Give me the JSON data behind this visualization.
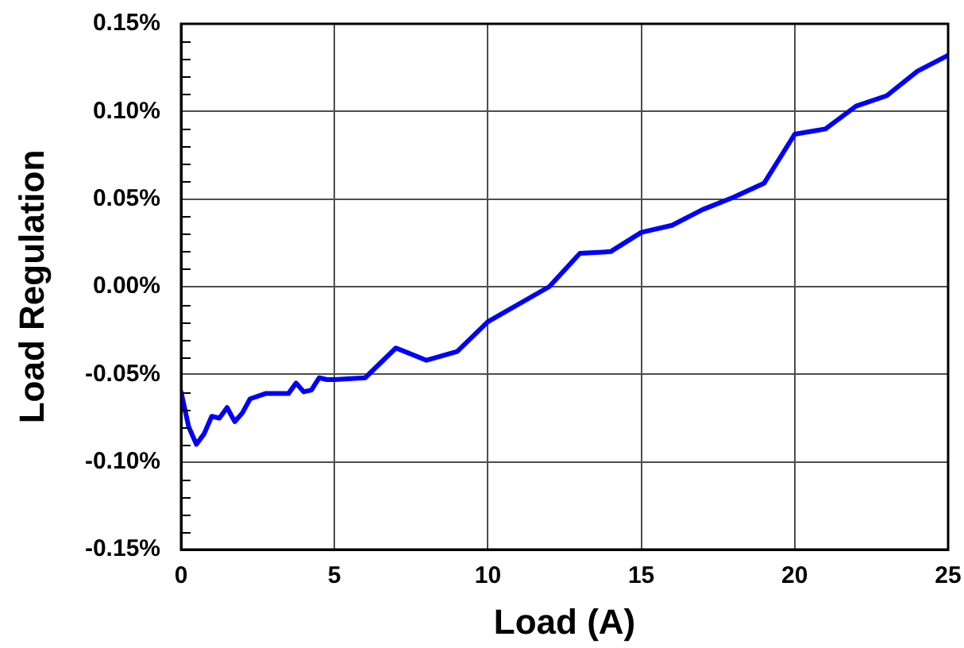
{
  "chart_data": {
    "type": "line",
    "xlabel": "Load (A)",
    "ylabel": "Load Regulation",
    "x": [
      0,
      0.25,
      0.5,
      0.75,
      1,
      1.25,
      1.5,
      1.75,
      2,
      2.25,
      2.75,
      3.5,
      3.75,
      4,
      4.25,
      4.5,
      4.75,
      5,
      6,
      7,
      8,
      9,
      10,
      12,
      13,
      14,
      15,
      16,
      17,
      18,
      19,
      20,
      21,
      22,
      23,
      24,
      25
    ],
    "series": [
      {
        "color": "#0000ff",
        "values": [
          -0.06,
          -0.08,
          -0.09,
          -0.084,
          -0.074,
          -0.075,
          -0.069,
          -0.077,
          -0.072,
          -0.064,
          -0.061,
          -0.061,
          -0.055,
          -0.06,
          -0.059,
          -0.052,
          -0.053,
          -0.053,
          -0.052,
          -0.035,
          -0.042,
          -0.037,
          -0.02,
          0,
          0.019,
          0.02,
          0.031,
          0.035,
          0.044,
          0.051,
          0.059,
          0.087,
          0.09,
          0.103,
          0.109,
          0.123,
          0.132
        ]
      }
    ],
    "xlim": [
      0,
      25
    ],
    "xticks": [
      0,
      5,
      10,
      15,
      20,
      25
    ],
    "ylim": [
      -0.15,
      0.15
    ],
    "yticks": [
      {
        "value": -0.15,
        "label": "-0.15%"
      },
      {
        "value": -0.14,
        "label": null
      },
      {
        "value": -0.13,
        "label": null
      },
      {
        "value": -0.12,
        "label": null
      },
      {
        "value": -0.11,
        "label": null
      },
      {
        "value": -0.1,
        "label": "-0.10%"
      },
      {
        "value": -0.09,
        "label": null
      },
      {
        "value": -0.08,
        "label": null
      },
      {
        "value": -0.07,
        "label": null
      },
      {
        "value": -0.06,
        "label": null
      },
      {
        "value": -0.05,
        "label": "-0.05%"
      },
      {
        "value": -0.04,
        "label": null
      },
      {
        "value": -0.03,
        "label": null
      },
      {
        "value": -0.02,
        "label": null
      },
      {
        "value": -0.01,
        "label": null
      },
      {
        "value": 0,
        "label": "0.00%"
      },
      {
        "value": 0.01,
        "label": null
      },
      {
        "value": 0.02,
        "label": null
      },
      {
        "value": 0.03,
        "label": null
      },
      {
        "value": 0.04,
        "label": null
      },
      {
        "value": 0.05,
        "label": "0.05%"
      },
      {
        "value": 0.06,
        "label": null
      },
      {
        "value": 0.07,
        "label": null
      },
      {
        "value": 0.08,
        "label": null
      },
      {
        "value": 0.09,
        "label": null
      },
      {
        "value": 0.1,
        "label": "0.10%"
      },
      {
        "value": 0.11,
        "label": null
      },
      {
        "value": 0.12,
        "label": null
      },
      {
        "value": 0.13,
        "label": null
      },
      {
        "value": 0.14,
        "label": null
      },
      {
        "value": 0.15,
        "label": "0.15%"
      }
    ],
    "grid": true,
    "marker": "none",
    "line_style": "solid"
  }
}
